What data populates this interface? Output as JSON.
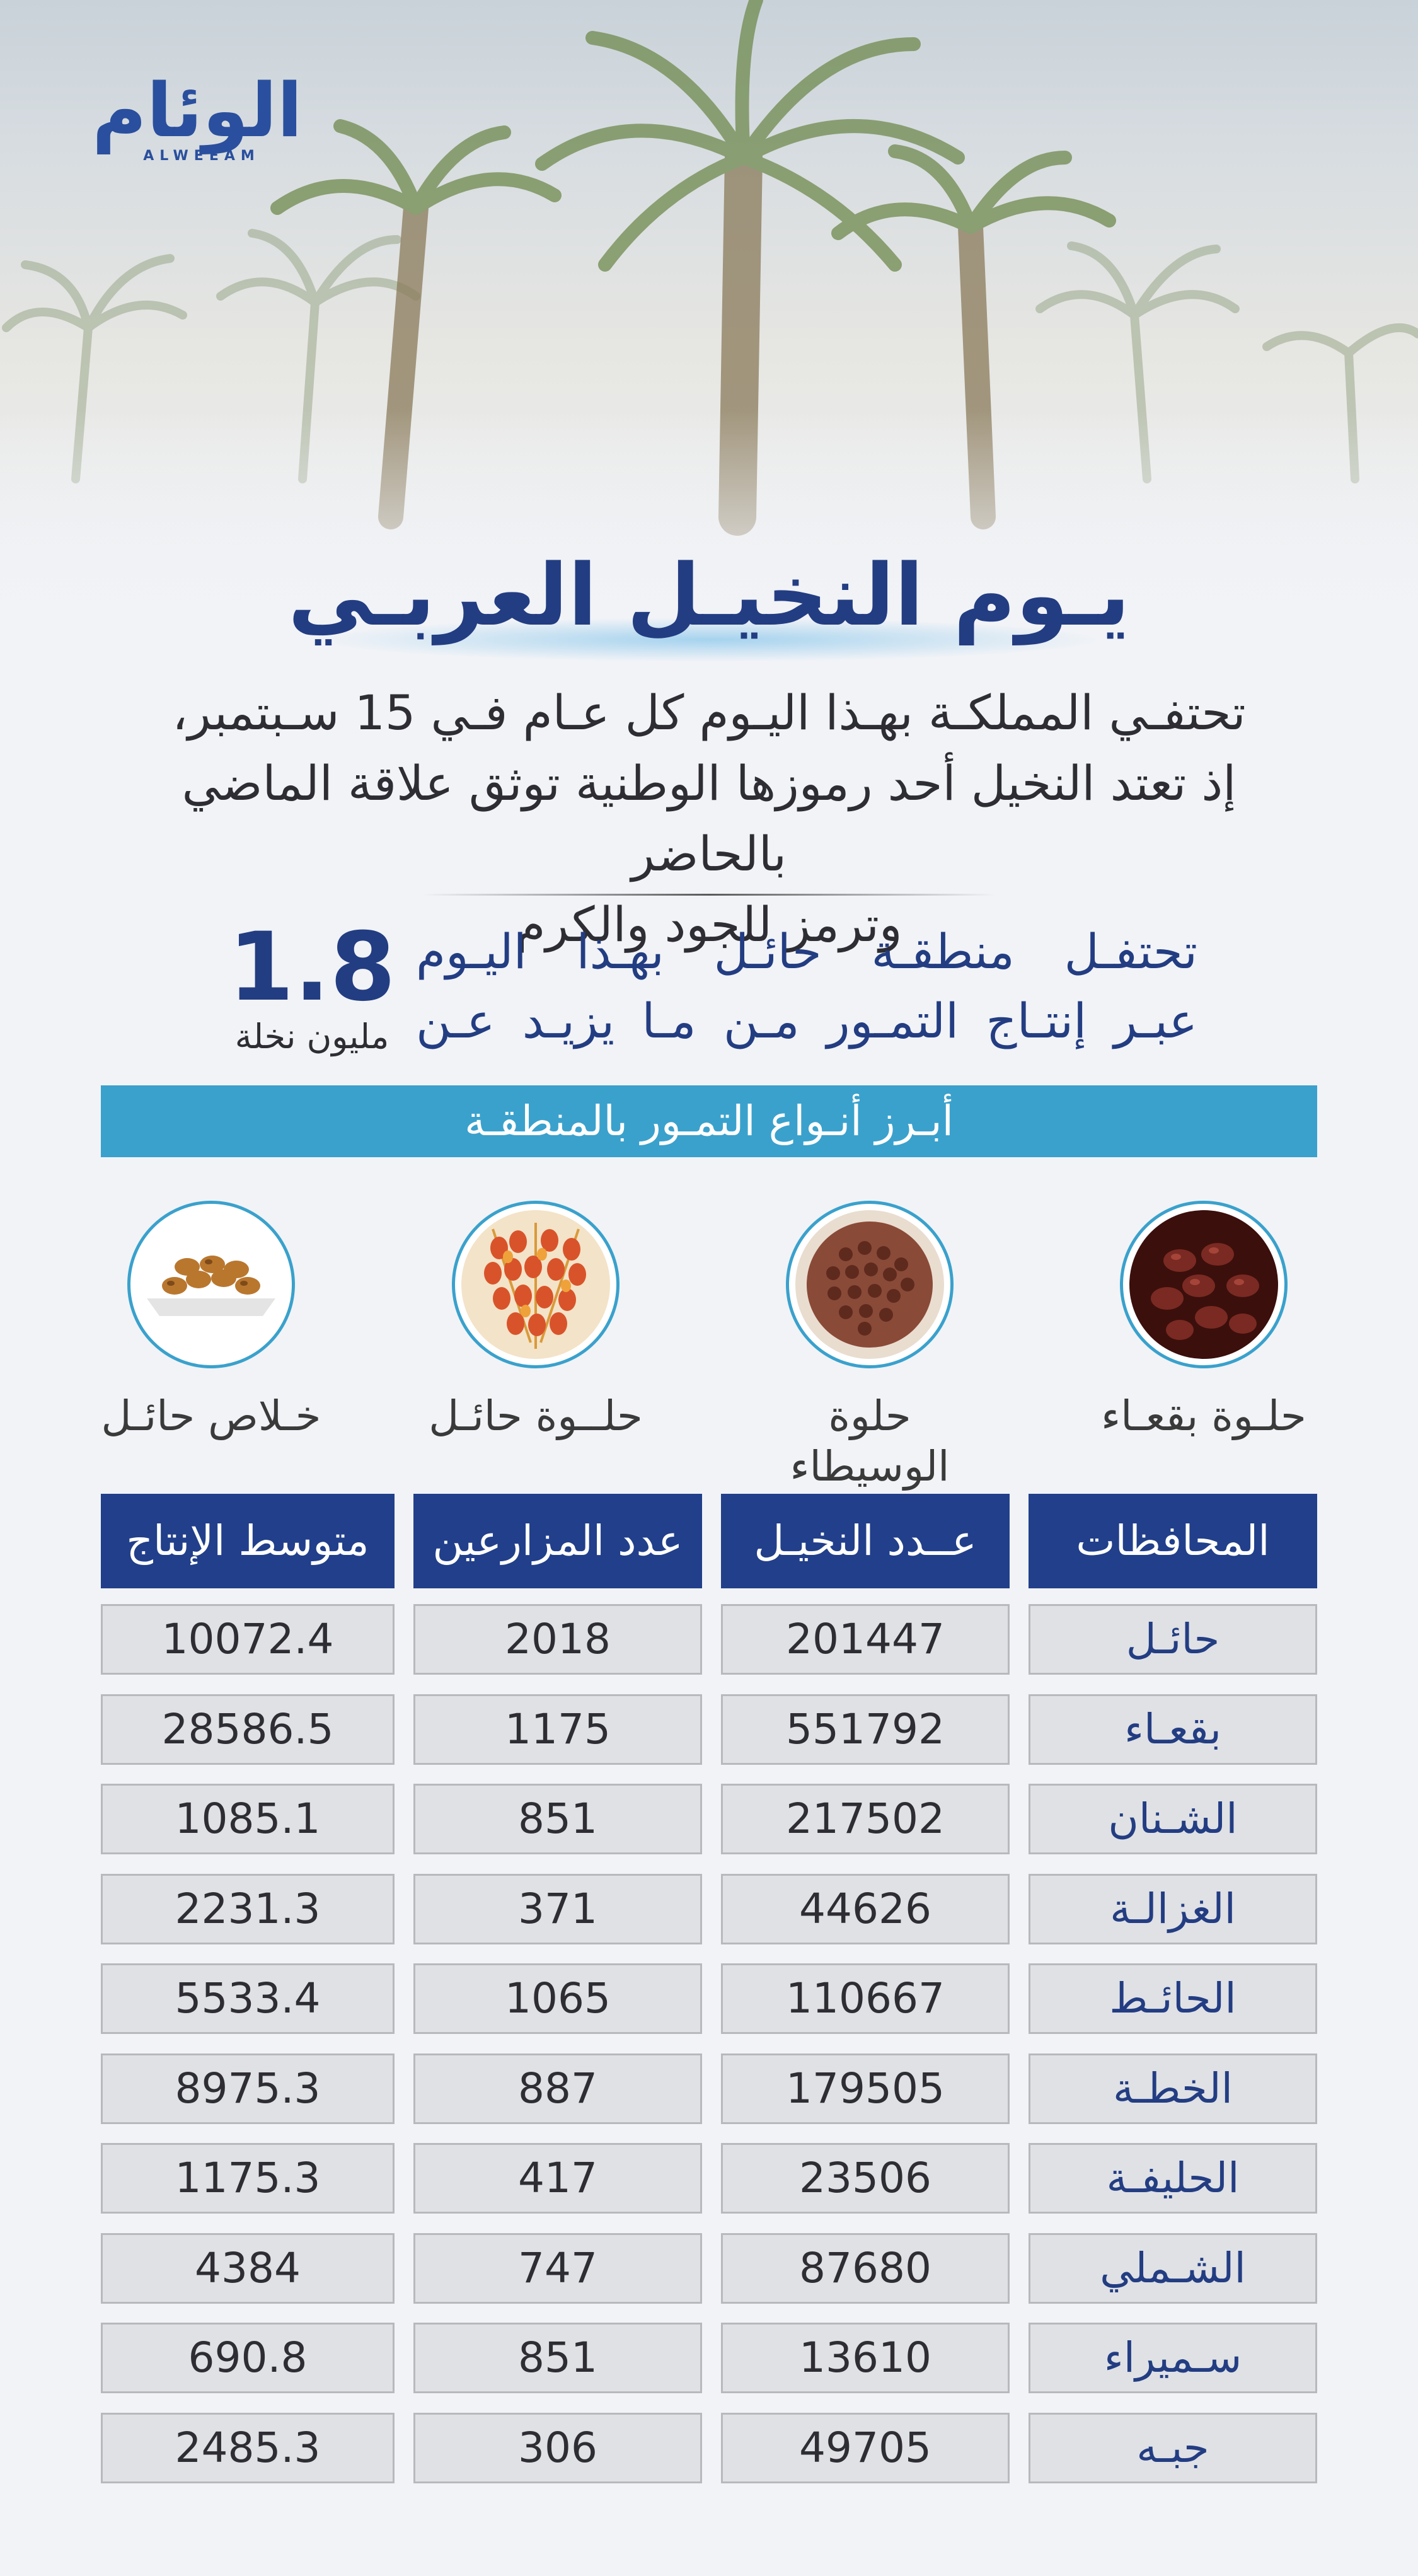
{
  "brand": {
    "logo_ar": "الوئام",
    "logo_en": "ALWEEAM"
  },
  "title": "يـوم النخيـل العربـي",
  "intro_lines": [
    "تحتفـي المملكـة بهـذا اليـوم كل عـام فـي 15 سـبتمبر،",
    "إذ تعتد النخيل أحد رموزها الوطنية توثق علاقة الماضي بالحاضر",
    "وترمز للجود والكرم"
  ],
  "hail": {
    "lines": [
      "تحتفـل منطقـة حائـل بهـذا اليـوم",
      "عبـر إنتـاج التمـور مـن مـا يزيـد عـن"
    ],
    "stat_value": "1.8",
    "stat_unit": "مليون نخلة"
  },
  "varieties_title": "أبـرز أنـواع التمـور بالمنطقـة",
  "varieties": [
    {
      "name": "حلـوة بقعـاء",
      "icon": "dates-bowl-icon",
      "color": "#6b1f1a"
    },
    {
      "name": "حلوة الوسيطاء",
      "icon": "dates-tray-icon",
      "color": "#7a3a2a"
    },
    {
      "name": "حلــوة حائـل",
      "icon": "dates-bunch-icon",
      "color": "#d9532a"
    },
    {
      "name": "خـلاص حائـل",
      "icon": "dates-plate-icon",
      "color": "#b9772e"
    }
  ],
  "table": {
    "headers": [
      "المحافظات",
      "عــدد النخيـل",
      "عدد المزارعين",
      "متوسط الإنتاج"
    ],
    "rows": [
      [
        "حائـل",
        "201447",
        "2018",
        "10072.4"
      ],
      [
        "بقعـاء",
        "551792",
        "1175",
        "28586.5"
      ],
      [
        "الشـنان",
        "217502",
        "851",
        "1085.1"
      ],
      [
        "الغزالـة",
        "44626",
        "371",
        "2231.3"
      ],
      [
        "الحائـط",
        "110667",
        "1065",
        "5533.4"
      ],
      [
        "الخطـة",
        "179505",
        "887",
        "8975.3"
      ],
      [
        "الحليفـة",
        "23506",
        "417",
        "1175.3"
      ],
      [
        "الشـملي",
        "87680",
        "747",
        "4384"
      ],
      [
        "سـميراء",
        "13610",
        "851",
        "690.8"
      ],
      [
        "جبـه",
        "49705",
        "306",
        "2485.3"
      ]
    ]
  },
  "colors": {
    "navy": "#233d82",
    "header_blue": "#213f8a",
    "accent": "#3aa1cc",
    "cell_bg": "#dfe1e5"
  }
}
